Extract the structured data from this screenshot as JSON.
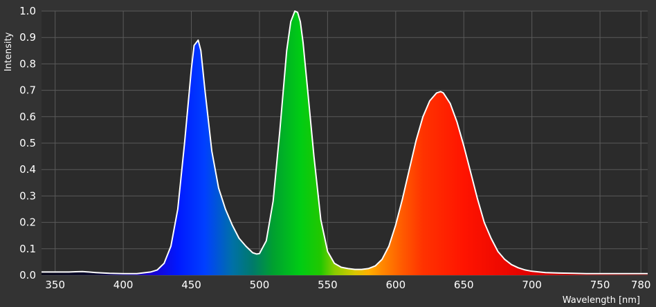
{
  "chart_data": {
    "type": "area",
    "xlabel": "Wavelength [nm]",
    "ylabel": "Intensity",
    "xlim": [
      340,
      785
    ],
    "ylim": [
      0,
      1.0
    ],
    "x_ticks": [
      350,
      400,
      450,
      500,
      550,
      600,
      650,
      700,
      750,
      780
    ],
    "y_ticks": [
      0.0,
      0.1,
      0.2,
      0.3,
      0.4,
      0.5,
      0.6,
      0.7,
      0.8,
      0.9,
      1.0
    ],
    "y_tick_labels": [
      "0.0",
      "0.1",
      "0.2",
      "0.3",
      "0.4",
      "0.5",
      "0.6",
      "0.7",
      "0.8",
      "0.9",
      "1.0"
    ],
    "grid": true,
    "fill": "visible-spectrum",
    "colors": {
      "background": "#333333",
      "plot": "#2b2b2b",
      "grid": "#5a5a5a",
      "line": "#ffffff"
    },
    "series": [
      {
        "x": [
          340,
          350,
          360,
          365,
          370,
          380,
          390,
          400,
          410,
          420,
          425,
          430,
          435,
          440,
          445,
          450,
          452,
          455,
          457,
          460,
          465,
          470,
          475,
          480,
          485,
          490,
          495,
          498,
          500,
          505,
          510,
          515,
          520,
          523,
          526,
          528,
          530,
          532,
          535,
          540,
          545,
          550,
          555,
          560,
          565,
          570,
          575,
          580,
          585,
          590,
          595,
          600,
          605,
          610,
          615,
          620,
          625,
          630,
          633,
          635,
          640,
          645,
          650,
          655,
          660,
          665,
          670,
          675,
          680,
          685,
          690,
          695,
          700,
          710,
          720,
          730,
          740,
          750,
          760,
          770,
          780,
          785
        ],
        "y": [
          0.012,
          0.012,
          0.012,
          0.013,
          0.014,
          0.01,
          0.007,
          0.006,
          0.006,
          0.012,
          0.02,
          0.045,
          0.11,
          0.25,
          0.5,
          0.78,
          0.87,
          0.89,
          0.85,
          0.7,
          0.47,
          0.33,
          0.25,
          0.19,
          0.14,
          0.11,
          0.085,
          0.08,
          0.082,
          0.13,
          0.28,
          0.55,
          0.85,
          0.96,
          1.0,
          0.995,
          0.96,
          0.88,
          0.72,
          0.45,
          0.21,
          0.09,
          0.045,
          0.03,
          0.025,
          0.022,
          0.022,
          0.025,
          0.035,
          0.06,
          0.11,
          0.19,
          0.29,
          0.4,
          0.51,
          0.6,
          0.66,
          0.69,
          0.695,
          0.69,
          0.65,
          0.58,
          0.49,
          0.39,
          0.29,
          0.2,
          0.14,
          0.09,
          0.06,
          0.04,
          0.028,
          0.02,
          0.015,
          0.01,
          0.008,
          0.007,
          0.006,
          0.006,
          0.006,
          0.006,
          0.006,
          0.006
        ]
      }
    ]
  }
}
